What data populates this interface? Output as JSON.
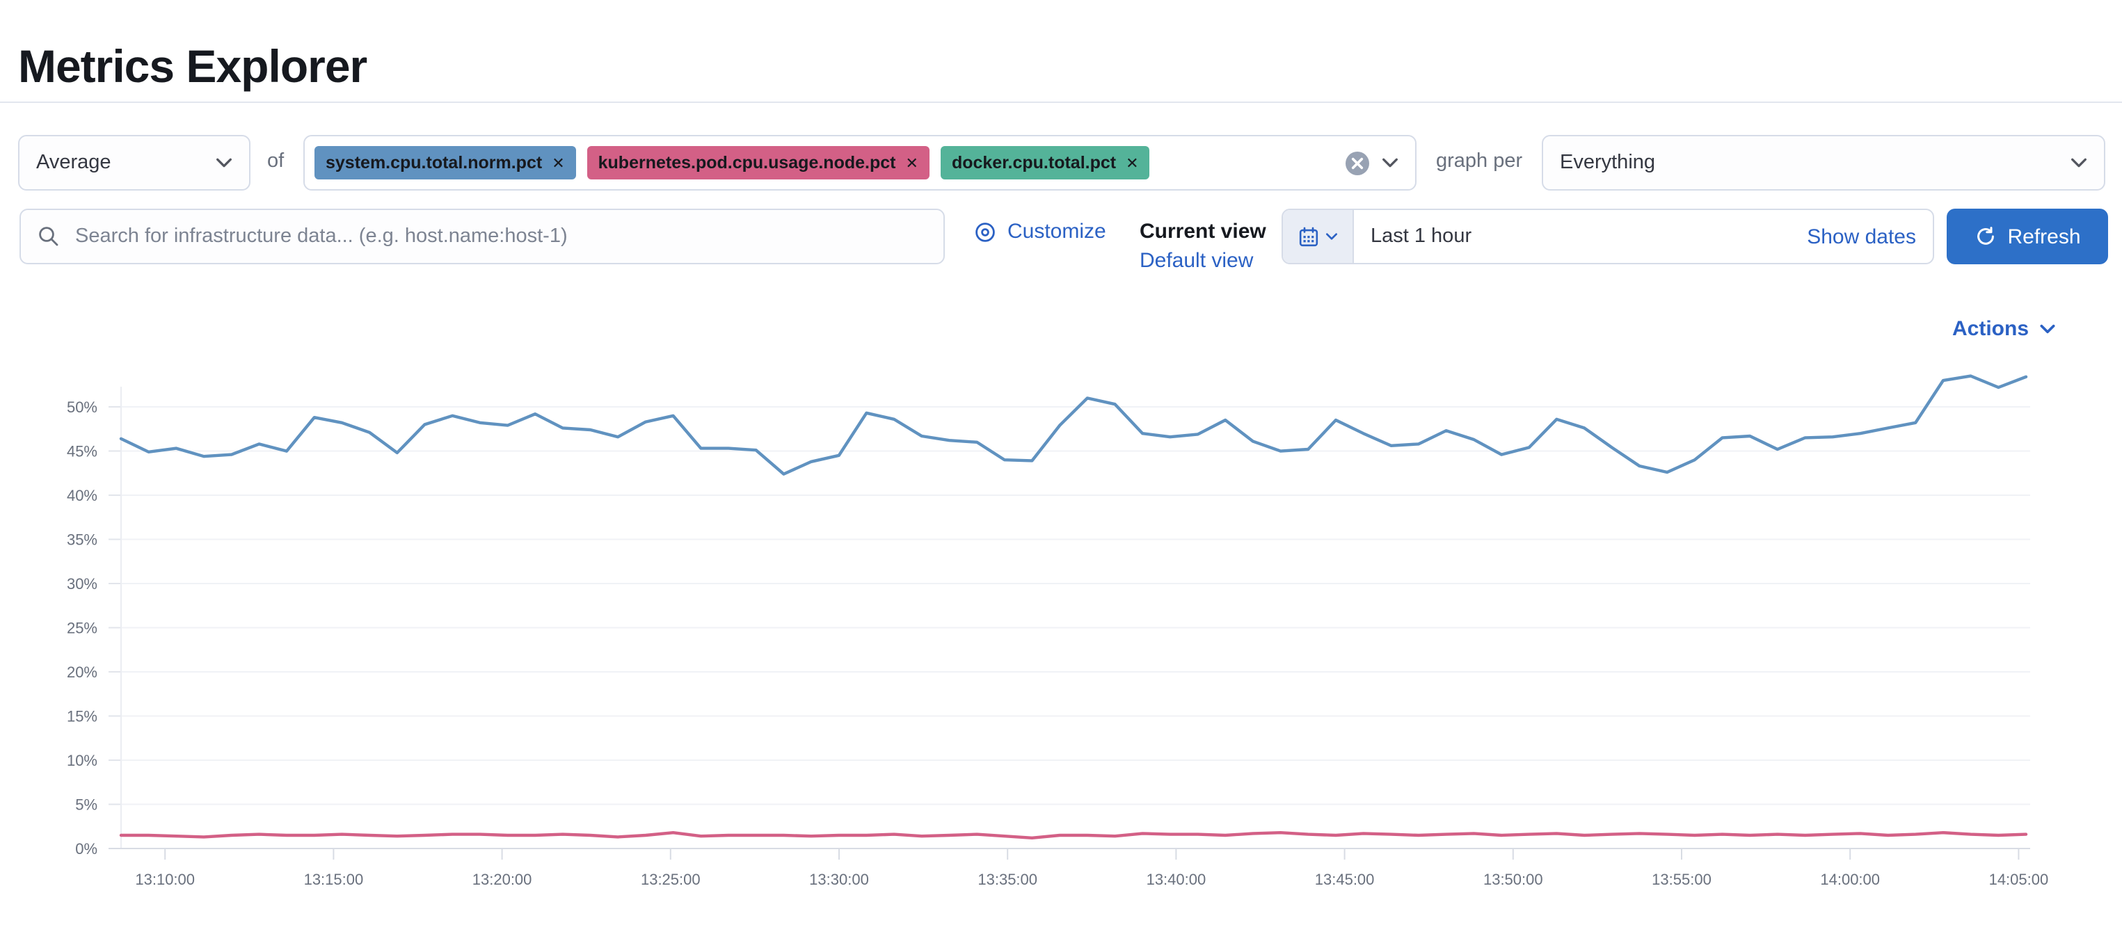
{
  "page": {
    "title": "Metrics Explorer"
  },
  "toolbar": {
    "aggregation": {
      "value": "Average"
    },
    "of_label": "of",
    "metrics": [
      {
        "label": "system.cpu.total.norm.pct",
        "color": "#6092C0"
      },
      {
        "label": "kubernetes.pod.cpu.usage.node.pct",
        "color": "#D36086"
      },
      {
        "label": "docker.cpu.total.pct",
        "color": "#54B399"
      }
    ],
    "remove_icon": "✕",
    "graph_per_label": "graph per",
    "graph_per": {
      "value": "Everything"
    }
  },
  "filter_bar": {
    "search": {
      "placeholder": "Search for infrastructure data... (e.g. host.name:host-1)"
    },
    "customize_label": "Customize",
    "view_picker": {
      "current_label": "Current view",
      "selected": "Default view"
    },
    "time_picker": {
      "value": "Last 1 hour",
      "show_dates_label": "Show dates"
    },
    "refresh_label": "Refresh"
  },
  "chart": {
    "actions_label": "Actions"
  },
  "colors": {
    "accent_blue": "#2d70c8",
    "link_blue": "#2b61c4",
    "series_blue": "#6092C0",
    "series_pink": "#D36086",
    "tag_green": "#54B399"
  },
  "chart_data": {
    "type": "line",
    "title": "",
    "xlabel": "",
    "ylabel": "",
    "legend": "none",
    "grid": "horizontal",
    "ylim": [
      0,
      55
    ],
    "y_ticks": [
      "0%",
      "5%",
      "10%",
      "15%",
      "20%",
      "25%",
      "30%",
      "35%",
      "40%",
      "45%",
      "50%"
    ],
    "x_ticks": [
      "13:10:00",
      "13:15:00",
      "13:20:00",
      "13:25:00",
      "13:30:00",
      "13:35:00",
      "13:40:00",
      "13:45:00",
      "13:50:00",
      "13:55:00",
      "14:00:00",
      "14:05:00"
    ],
    "series": [
      {
        "name": "system.cpu.total.norm.pct (avg)",
        "color": "#6092C0",
        "unit": "%",
        "values": [
          46.4,
          44.9,
          45.3,
          44.4,
          44.6,
          45.8,
          45.0,
          48.8,
          48.2,
          47.1,
          44.8,
          48.0,
          49.0,
          48.2,
          47.9,
          49.2,
          47.6,
          47.4,
          46.6,
          48.3,
          49.0,
          45.3,
          45.3,
          45.1,
          42.4,
          43.8,
          44.5,
          49.3,
          48.6,
          46.7,
          46.2,
          46.0,
          44.0,
          43.9,
          47.9,
          51.0,
          50.3,
          47.0,
          46.6,
          46.9,
          48.5,
          46.1,
          45.0,
          45.2,
          48.5,
          47.0,
          45.6,
          45.8,
          47.3,
          46.3,
          44.6,
          45.4,
          48.6,
          47.6,
          45.4,
          43.3,
          42.6,
          44.0,
          46.5,
          46.7,
          45.2,
          46.5,
          46.6,
          47.0,
          47.6,
          48.2,
          53.0,
          53.5,
          52.2,
          53.4
        ]
      },
      {
        "name": "kubernetes.pod.cpu.usage.node.pct (avg)",
        "color": "#D36086",
        "unit": "%",
        "values": [
          1.5,
          1.5,
          1.4,
          1.3,
          1.5,
          1.6,
          1.5,
          1.5,
          1.6,
          1.5,
          1.4,
          1.5,
          1.6,
          1.6,
          1.5,
          1.5,
          1.6,
          1.5,
          1.3,
          1.5,
          1.8,
          1.4,
          1.5,
          1.5,
          1.5,
          1.4,
          1.5,
          1.5,
          1.6,
          1.4,
          1.5,
          1.6,
          1.4,
          1.2,
          1.5,
          1.5,
          1.4,
          1.7,
          1.6,
          1.6,
          1.5,
          1.7,
          1.8,
          1.6,
          1.5,
          1.7,
          1.6,
          1.5,
          1.6,
          1.7,
          1.5,
          1.6,
          1.7,
          1.5,
          1.6,
          1.7,
          1.6,
          1.5,
          1.6,
          1.5,
          1.6,
          1.5,
          1.6,
          1.7,
          1.5,
          1.6,
          1.8,
          1.6,
          1.5,
          1.6
        ]
      }
    ]
  }
}
